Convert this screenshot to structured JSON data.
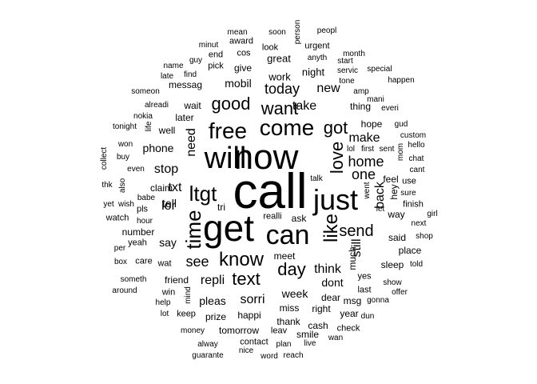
{
  "words": [
    {
      "t": "call",
      "s": 62
    },
    {
      "t": "now",
      "s": 44
    },
    {
      "t": "get",
      "s": 46
    },
    {
      "t": "can",
      "s": 34
    },
    {
      "t": "just",
      "s": 36
    },
    {
      "t": "will",
      "s": 38
    },
    {
      "t": "come",
      "s": 28
    },
    {
      "t": "free",
      "s": 28
    },
    {
      "t": "ltgt",
      "s": 26
    },
    {
      "t": "time",
      "s": 26
    },
    {
      "t": "like",
      "s": 24
    },
    {
      "t": "know",
      "s": 24
    },
    {
      "t": "good",
      "s": 22
    },
    {
      "t": "want",
      "s": 22
    },
    {
      "t": "day",
      "s": 22
    },
    {
      "t": "text",
      "s": 22
    },
    {
      "t": "love",
      "s": 22
    },
    {
      "t": "got",
      "s": 22
    },
    {
      "t": "send",
      "s": 20
    },
    {
      "t": "one",
      "s": 18
    },
    {
      "t": "home",
      "s": 18
    },
    {
      "t": "today",
      "s": 18
    },
    {
      "t": "see",
      "s": 18
    },
    {
      "t": "need",
      "s": 16
    },
    {
      "t": "back",
      "s": 16
    },
    {
      "t": "take",
      "s": 16
    },
    {
      "t": "new",
      "s": 16
    },
    {
      "t": "make",
      "s": 16
    },
    {
      "t": "still",
      "s": 16
    },
    {
      "t": "repli",
      "s": 16
    },
    {
      "t": "think",
      "s": 16
    },
    {
      "t": "sorri",
      "s": 16
    },
    {
      "t": "stop",
      "s": 16
    },
    {
      "t": "phone",
      "s": 14
    },
    {
      "t": "tell",
      "s": 14
    },
    {
      "t": "lor",
      "s": 16
    },
    {
      "t": "say",
      "s": 14
    },
    {
      "t": "txt",
      "s": 16
    },
    {
      "t": "pleas",
      "s": 14
    },
    {
      "t": "week",
      "s": 14
    },
    {
      "t": "dont",
      "s": 14
    },
    {
      "t": "mobil",
      "s": 14
    },
    {
      "t": "work",
      "s": 13
    },
    {
      "t": "great",
      "s": 13
    },
    {
      "t": "night",
      "s": 13
    },
    {
      "t": "give",
      "s": 12
    },
    {
      "t": "messag",
      "s": 12
    },
    {
      "t": "wait",
      "s": 12
    },
    {
      "t": "later",
      "s": 12
    },
    {
      "t": "well",
      "s": 12
    },
    {
      "t": "thing",
      "s": 12
    },
    {
      "t": "hope",
      "s": 12
    },
    {
      "t": "much",
      "s": 12
    },
    {
      "t": "miss",
      "s": 12
    },
    {
      "t": "happi",
      "s": 12
    },
    {
      "t": "dear",
      "s": 12
    },
    {
      "t": "meet",
      "s": 12
    },
    {
      "t": "claim",
      "s": 12
    },
    {
      "t": "tri",
      "s": 12
    },
    {
      "t": "ask",
      "s": 12
    },
    {
      "t": "mean",
      "s": 10
    },
    {
      "t": "soon",
      "s": 10
    },
    {
      "t": "person",
      "s": 10
    },
    {
      "t": "peopl",
      "s": 10
    },
    {
      "t": "minut",
      "s": 10
    },
    {
      "t": "award",
      "s": 11
    },
    {
      "t": "urgent",
      "s": 11
    },
    {
      "t": "guy",
      "s": 10
    },
    {
      "t": "end",
      "s": 11
    },
    {
      "t": "cos",
      "s": 11
    },
    {
      "t": "look",
      "s": 11
    },
    {
      "t": "anyth",
      "s": 10
    },
    {
      "t": "month",
      "s": 10
    },
    {
      "t": "name",
      "s": 10
    },
    {
      "t": "pick",
      "s": 11
    },
    {
      "t": "start",
      "s": 10
    },
    {
      "t": "late",
      "s": 10
    },
    {
      "t": "find",
      "s": 10
    },
    {
      "t": "servic",
      "s": 10
    },
    {
      "t": "special",
      "s": 10
    },
    {
      "t": "tone",
      "s": 10
    },
    {
      "t": "happen",
      "s": 10
    },
    {
      "t": "someon",
      "s": 10
    },
    {
      "t": "amp",
      "s": 10
    },
    {
      "t": "mani",
      "s": 10
    },
    {
      "t": "alreadi",
      "s": 10
    },
    {
      "t": "everi",
      "s": 10
    },
    {
      "t": "nokia",
      "s": 10
    },
    {
      "t": "gud",
      "s": 10
    },
    {
      "t": "tonight",
      "s": 10
    },
    {
      "t": "life",
      "s": 10
    },
    {
      "t": "custom",
      "s": 10
    },
    {
      "t": "mom",
      "s": 10
    },
    {
      "t": "hello",
      "s": 10
    },
    {
      "t": "lol",
      "s": 10
    },
    {
      "t": "first",
      "s": 10
    },
    {
      "t": "sent",
      "s": 10
    },
    {
      "t": "won",
      "s": 10
    },
    {
      "t": "chat",
      "s": 10
    },
    {
      "t": "collect",
      "s": 10
    },
    {
      "t": "buy",
      "s": 10
    },
    {
      "t": "cant",
      "s": 10
    },
    {
      "t": "even",
      "s": 10
    },
    {
      "t": "feel",
      "s": 12
    },
    {
      "t": "use",
      "s": 11
    },
    {
      "t": "thk",
      "s": 10
    },
    {
      "t": "also",
      "s": 10
    },
    {
      "t": "talk",
      "s": 10
    },
    {
      "t": "hey",
      "s": 12
    },
    {
      "t": "sure",
      "s": 10
    },
    {
      "t": "babe",
      "s": 10
    },
    {
      "t": "went",
      "s": 10
    },
    {
      "t": "yet",
      "s": 10
    },
    {
      "t": "wish",
      "s": 10
    },
    {
      "t": "pls",
      "s": 11
    },
    {
      "t": "finish",
      "s": 11
    },
    {
      "t": "let",
      "s": 10
    },
    {
      "t": "way",
      "s": 12
    },
    {
      "t": "girl",
      "s": 10
    },
    {
      "t": "watch",
      "s": 11
    },
    {
      "t": "hour",
      "s": 10
    },
    {
      "t": "realli",
      "s": 11
    },
    {
      "t": "next",
      "s": 10
    },
    {
      "t": "number",
      "s": 12
    },
    {
      "t": "said",
      "s": 12
    },
    {
      "t": "shop",
      "s": 10
    },
    {
      "t": "yeah",
      "s": 11
    },
    {
      "t": "per",
      "s": 10
    },
    {
      "t": "place",
      "s": 12
    },
    {
      "t": "box",
      "s": 10
    },
    {
      "t": "care",
      "s": 11
    },
    {
      "t": "wat",
      "s": 11
    },
    {
      "t": "sleep",
      "s": 12
    },
    {
      "t": "told",
      "s": 10
    },
    {
      "t": "yes",
      "s": 11
    },
    {
      "t": "someth",
      "s": 10
    },
    {
      "t": "friend",
      "s": 12
    },
    {
      "t": "mind",
      "s": 10
    },
    {
      "t": "show",
      "s": 10
    },
    {
      "t": "last",
      "s": 11
    },
    {
      "t": "around",
      "s": 10
    },
    {
      "t": "win",
      "s": 11
    },
    {
      "t": "offer",
      "s": 10
    },
    {
      "t": "help",
      "s": 10
    },
    {
      "t": "msg",
      "s": 12
    },
    {
      "t": "gonna",
      "s": 10
    },
    {
      "t": "year",
      "s": 12
    },
    {
      "t": "dun",
      "s": 10
    },
    {
      "t": "lot",
      "s": 10
    },
    {
      "t": "keep",
      "s": 11
    },
    {
      "t": "prize",
      "s": 12
    },
    {
      "t": "right",
      "s": 12
    },
    {
      "t": "thank",
      "s": 12
    },
    {
      "t": "money",
      "s": 10
    },
    {
      "t": "tomorrow",
      "s": 12
    },
    {
      "t": "leav",
      "s": 11
    },
    {
      "t": "cash",
      "s": 12
    },
    {
      "t": "check",
      "s": 11
    },
    {
      "t": "smile",
      "s": 12
    },
    {
      "t": "contact",
      "s": 11
    },
    {
      "t": "wan",
      "s": 10
    },
    {
      "t": "alway",
      "s": 10
    },
    {
      "t": "plan",
      "s": 10
    },
    {
      "t": "live",
      "s": 10
    },
    {
      "t": "guarante",
      "s": 10
    },
    {
      "t": "nice",
      "s": 10
    },
    {
      "t": "word",
      "s": 10
    },
    {
      "t": "reach",
      "s": 10
    }
  ]
}
